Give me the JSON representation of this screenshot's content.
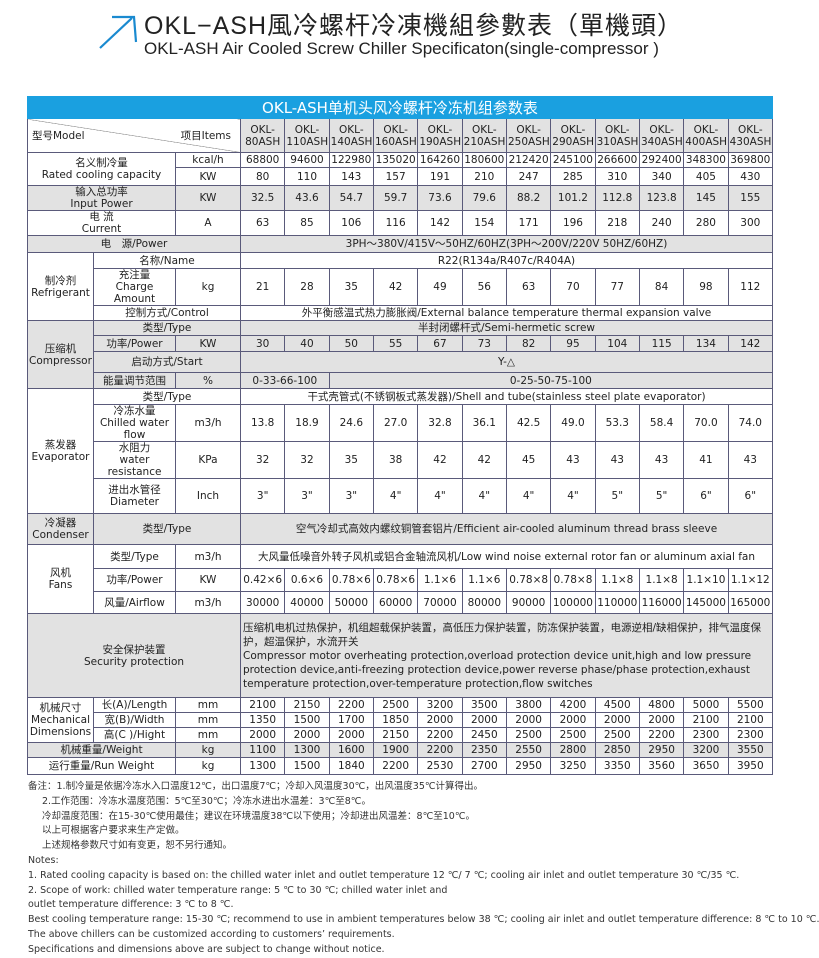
{
  "header": {
    "title_cn": "OKL−ASH風冷螺杆冷凍機組參數表（單機頭）",
    "title_en": "OKL-ASH Air Cooled Screw Chiller Specificaton(single-compressor )"
  },
  "colors": {
    "banner": "#1aa0e0",
    "shade": "#e2e2e2",
    "arrow": "#1a8ad0"
  },
  "table": {
    "banner": "OKL-ASH单机头风冷螺杆冷冻机组参数表",
    "model_label": "型号Model",
    "items_label": "项目Items",
    "models": [
      "OKL-80ASH",
      "OKL-110ASH",
      "OKL-140ASH",
      "OKL-160ASH",
      "OKL-190ASH",
      "OKL-210ASH",
      "OKL-250ASH",
      "OKL-290ASH",
      "OKL-310ASH",
      "OKL-340ASH",
      "OKL-400ASH",
      "OKL-430ASH"
    ],
    "cooling": {
      "label_cn": "名义制冷量",
      "label_en": "Rated cooling capacity",
      "unit_kcal": "kcal/h",
      "unit_kw": "KW",
      "kcal": [
        "68800",
        "94600",
        "122980",
        "135020",
        "164260",
        "180600",
        "212420",
        "245100",
        "266600",
        "292400",
        "348300",
        "369800"
      ],
      "kw": [
        "80",
        "110",
        "143",
        "157",
        "191",
        "210",
        "247",
        "285",
        "310",
        "340",
        "405",
        "430"
      ]
    },
    "input_power": {
      "label_cn": "输入总功率",
      "label_en": "Input Power",
      "unit": "KW",
      "values": [
        "32.5",
        "43.6",
        "54.7",
        "59.7",
        "73.6",
        "79.6",
        "88.2",
        "101.2",
        "112.8",
        "123.8",
        "145",
        "155"
      ]
    },
    "current": {
      "label_cn": "电 流",
      "label_en": "Current",
      "unit": "A",
      "values": [
        "63",
        "85",
        "106",
        "116",
        "142",
        "154",
        "171",
        "196",
        "218",
        "240",
        "280",
        "300"
      ]
    },
    "power_supply": {
      "label": "电　源/Power",
      "value": "3PH～380V/415V～50HZ/60HZ(3PH～200V/220V  50HZ/60HZ)"
    },
    "refrigerant": {
      "label_cn": "制冷剂",
      "label_en": "Refrigerant",
      "name_label": "名称/Name",
      "name_value": "R22(R134a/R407c/R404A)",
      "charge_cn": "充注量",
      "charge_en": "Charge Amount",
      "charge_unit": "kg",
      "charge": [
        "21",
        "28",
        "35",
        "42",
        "49",
        "56",
        "63",
        "70",
        "77",
        "84",
        "98",
        "112"
      ],
      "control_label": "控制方式/Control",
      "control_value": "外平衡感温式热力膨胀阀/External balance temperature thermal expansion valve"
    },
    "compressor": {
      "label_cn": "压缩机",
      "label_en": "Compressor",
      "type_label": "类型/Type",
      "type_value": "半封闭螺杆式/Semi-hermetic screw",
      "power_label": "功率/Power",
      "power_unit": "KW",
      "power": [
        "30",
        "40",
        "50",
        "55",
        "67",
        "73",
        "82",
        "95",
        "104",
        "115",
        "134",
        "142"
      ],
      "start_label": "启动方式/Start",
      "start_value": "Y-△",
      "energy_label": "能量调节范围",
      "energy_unit": "%",
      "energy_a": "0-33-66-100",
      "energy_b": "0-25-50-75-100"
    },
    "evaporator": {
      "label_cn": "蒸发器",
      "label_en": "Evaporator",
      "type_label": "类型/Type",
      "type_value": "干式壳管式(不锈钢板式蒸发器)/Shell and tube(stainless steel plate evaporator)",
      "flow_cn": "冷冻水量",
      "flow_en": "Chilled water flow",
      "flow_unit": "m3/h",
      "flow": [
        "13.8",
        "18.9",
        "24.6",
        "27.0",
        "32.8",
        "36.1",
        "42.5",
        "49.0",
        "53.3",
        "58.4",
        "70.0",
        "74.0"
      ],
      "res_cn": "水阻力",
      "res_en": "water resistance",
      "res_unit": "KPa",
      "res": [
        "32",
        "32",
        "35",
        "38",
        "42",
        "42",
        "45",
        "43",
        "43",
        "43",
        "41",
        "43"
      ],
      "dia_cn": "进出水管径",
      "dia_en": "Diameter",
      "dia_unit": "Inch",
      "dia": [
        "3\"",
        "3\"",
        "3\"",
        "4\"",
        "4\"",
        "4\"",
        "4\"",
        "4\"",
        "5\"",
        "5\"",
        "6\"",
        "6\""
      ]
    },
    "condenser": {
      "label_cn": "冷凝器",
      "label_en": "Condenser",
      "type_label": "类型/Type",
      "type_value": "空气冷却式高效内螺纹铜管套铝片/Efficient air-cooled aluminum thread brass sleeve"
    },
    "fans": {
      "label_cn": "风机",
      "label_en": "Fans",
      "type_label": "类型/Type",
      "type_unit": "m3/h",
      "type_value": "大风量低噪音外转子风机或铝合金轴流风机/Low wind noise external rotor fan or aluminum axial fan",
      "power_label": "功率/Power",
      "power_unit": "KW",
      "power": [
        "0.42×6",
        "0.6×6",
        "0.78×6",
        "0.78×6",
        "1.1×6",
        "1.1×6",
        "0.78×8",
        "0.78×8",
        "1.1×8",
        "1.1×8",
        "1.1×10",
        "1.1×12"
      ],
      "air_label": "风量/Airflow",
      "air_unit": "m3/h",
      "air": [
        "30000",
        "40000",
        "50000",
        "60000",
        "70000",
        "80000",
        "90000",
        "100000",
        "110000",
        "116000",
        "145000",
        "165000"
      ]
    },
    "security": {
      "label_cn": "安全保护装置",
      "label_en": "Security protection",
      "text_cn": "压缩机电机过热保护，机组超载保护装置，高低压力保护装置，防冻保护装置，电源逆相/缺相保护，排气温度保护，超温保护，水流开关",
      "text_en": "Compressor motor overheating protection,overload protection device unit,high and low pressure protection device,anti-freezing protection device,power reverse phase/phase protection,exhaust temperature protection,over-temperature protection,flow switches"
    },
    "dimensions": {
      "label_cn": "机械尺寸",
      "label_en1": "Mechanical",
      "label_en2": "Dimensions",
      "length_label": "长(A)/Length",
      "width_label": "宽(B)/Width",
      "height_label": "高(C )/Hight",
      "unit": "mm",
      "length": [
        "2100",
        "2150",
        "2200",
        "2500",
        "3200",
        "3500",
        "3800",
        "4200",
        "4500",
        "4800",
        "5000",
        "5500"
      ],
      "width": [
        "1350",
        "1500",
        "1700",
        "1850",
        "2000",
        "2000",
        "2000",
        "2000",
        "2000",
        "2000",
        "2100",
        "2100"
      ],
      "height": [
        "2000",
        "2000",
        "2000",
        "2150",
        "2200",
        "2450",
        "2500",
        "2500",
        "2500",
        "2200",
        "2300",
        "2300"
      ]
    },
    "weight": {
      "label": "机械重量/Weight",
      "unit": "kg",
      "values": [
        "1100",
        "1300",
        "1600",
        "1900",
        "2200",
        "2350",
        "2550",
        "2800",
        "2850",
        "2950",
        "3200",
        "3550"
      ]
    },
    "run_weight": {
      "label": "运行重量/Run Weight",
      "unit": "kg",
      "values": [
        "1300",
        "1500",
        "1840",
        "2200",
        "2530",
        "2700",
        "2950",
        "3250",
        "3350",
        "3560",
        "3650",
        "3950"
      ]
    }
  },
  "notes": {
    "cn": [
      "备注：1.制冷量是依据冷冻水入口温度12℃，出口温度7℃；冷却入风温度30℃，出风温度35℃计算得出。",
      "2.工作范围：冷冻水温度范围：5℃至30℃；冷冻水进出水温差：3℃至8℃。",
      "冷却温度范围：在15-30℃使用最佳；建议在环境温度38℃以下使用；冷却进出风温差：8℃至10℃。",
      "以上可根据客户要求来生产定做。",
      "上述规格参数尺寸如有变更，恕不另行通知。"
    ],
    "en": [
      "Notes:",
      "1. Rated cooling capacity is based on: the chilled water inlet and outlet temperature 12 ℃/ 7 ℃; cooling air inlet and outlet temperature 30 ℃/35 ℃.",
      "2. Scope of work: chilled water temperature range: 5 ℃ to 30 ℃; chilled water inlet and",
      "outlet temperature difference: 3 ℃ to 8 ℃.",
      "Best cooling temperature range: 15-30 ℃; recommend to use in ambient temperatures below 38 ℃; cooling air inlet and outlet temperature difference: 8 ℃ to 10 ℃.",
      " The above chillers can be customized according to customers’  requirements.",
      "Specifications and dimensions above are subject to change without notice."
    ]
  }
}
